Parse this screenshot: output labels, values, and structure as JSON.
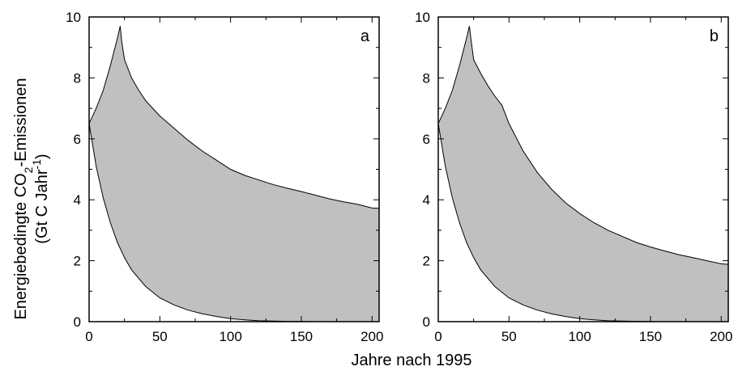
{
  "figure": {
    "xlabel": "Jahre nach 1995",
    "ylabel_line1_prefix": "Energiebedingte CO",
    "ylabel_line1_sub": "2",
    "ylabel_line1_suffix": "-Emissionen",
    "ylabel_line2_prefix": "(Gt C Jahr",
    "ylabel_line2_sup": "-1",
    "ylabel_line2_suffix": ")"
  },
  "chart_data": [
    {
      "type": "area",
      "panel_label": "a",
      "xlim": [
        0,
        205
      ],
      "ylim": [
        0,
        10
      ],
      "xticks": [
        0,
        50,
        100,
        150,
        200
      ],
      "yticks": [
        0,
        2,
        4,
        6,
        8,
        10
      ],
      "fill_color": "#c0c0c0",
      "grid": false,
      "upper": {
        "x": [
          0,
          5,
          10,
          15,
          20,
          22,
          23,
          25,
          30,
          35,
          40,
          45,
          50,
          60,
          70,
          80,
          90,
          100,
          110,
          120,
          130,
          140,
          150,
          160,
          170,
          180,
          190,
          200,
          205
        ],
        "y": [
          6.5,
          7.0,
          7.6,
          8.4,
          9.3,
          9.7,
          9.2,
          8.6,
          8.0,
          7.6,
          7.25,
          7.0,
          6.75,
          6.35,
          5.95,
          5.6,
          5.3,
          5.0,
          4.8,
          4.65,
          4.5,
          4.38,
          4.27,
          4.15,
          4.03,
          3.93,
          3.85,
          3.73,
          3.72
        ]
      },
      "lower": {
        "x": [
          0,
          5,
          10,
          15,
          20,
          25,
          30,
          40,
          50,
          60,
          70,
          80,
          90,
          100,
          110,
          120,
          130,
          140,
          160,
          180,
          205
        ],
        "y": [
          6.5,
          5.1,
          4.05,
          3.25,
          2.6,
          2.1,
          1.7,
          1.15,
          0.78,
          0.55,
          0.38,
          0.26,
          0.17,
          0.1,
          0.06,
          0.03,
          0.02,
          0.01,
          0.0,
          0.0,
          0.0
        ]
      }
    },
    {
      "type": "area",
      "panel_label": "b",
      "xlim": [
        0,
        205
      ],
      "ylim": [
        0,
        10
      ],
      "xticks": [
        0,
        50,
        100,
        150,
        200
      ],
      "yticks": [
        0,
        2,
        4,
        6,
        8,
        10
      ],
      "fill_color": "#c0c0c0",
      "grid": false,
      "upper": {
        "x": [
          0,
          5,
          10,
          15,
          20,
          22,
          23,
          25,
          30,
          35,
          40,
          45,
          50,
          60,
          70,
          80,
          90,
          100,
          110,
          120,
          130,
          140,
          150,
          160,
          170,
          180,
          190,
          200,
          205
        ],
        "y": [
          6.5,
          7.0,
          7.6,
          8.4,
          9.3,
          9.7,
          9.3,
          8.6,
          8.15,
          7.75,
          7.4,
          7.1,
          6.5,
          5.6,
          4.9,
          4.35,
          3.9,
          3.55,
          3.25,
          3.0,
          2.8,
          2.6,
          2.45,
          2.32,
          2.2,
          2.1,
          2.0,
          1.9,
          1.88
        ]
      },
      "lower": {
        "x": [
          0,
          5,
          10,
          15,
          20,
          25,
          30,
          40,
          50,
          60,
          70,
          80,
          90,
          100,
          110,
          120,
          130,
          140,
          160,
          180,
          205
        ],
        "y": [
          6.5,
          5.1,
          4.05,
          3.25,
          2.6,
          2.1,
          1.7,
          1.15,
          0.78,
          0.55,
          0.38,
          0.26,
          0.17,
          0.1,
          0.06,
          0.03,
          0.02,
          0.01,
          0.0,
          0.0,
          0.0
        ]
      }
    }
  ]
}
